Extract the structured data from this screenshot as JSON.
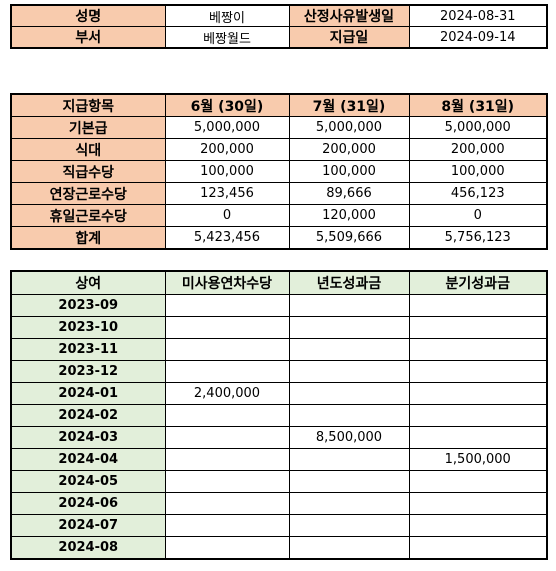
{
  "info": {
    "name_label": "성명",
    "name_value": "베짱이",
    "cause_date_label": "산정사유발생일",
    "cause_date_value": "2024-08-31",
    "dept_label": "부서",
    "dept_value": "베짱월드",
    "pay_date_label": "지급일",
    "pay_date_value": "2024-09-14"
  },
  "pay": {
    "headers": [
      "지급항목",
      "6월 (30일)",
      "7월 (31일)",
      "8월 (31일)"
    ],
    "rows": [
      {
        "label": "기본급",
        "values": [
          "5,000,000",
          "5,000,000",
          "5,000,000"
        ]
      },
      {
        "label": "식대",
        "values": [
          "200,000",
          "200,000",
          "200,000"
        ]
      },
      {
        "label": "직급수당",
        "values": [
          "100,000",
          "100,000",
          "100,000"
        ]
      },
      {
        "label": "연장근로수당",
        "values": [
          "123,456",
          "89,666",
          "456,123"
        ]
      },
      {
        "label": "휴일근로수당",
        "values": [
          "0",
          "120,000",
          "0"
        ]
      },
      {
        "label": "합계",
        "values": [
          "5,423,456",
          "5,509,666",
          "5,756,123"
        ]
      }
    ]
  },
  "bonus": {
    "headers": [
      "상여",
      "미사용연차수당",
      "년도성과금",
      "분기성과금"
    ],
    "rows": [
      {
        "label": "2023-09",
        "values": [
          "",
          "",
          ""
        ]
      },
      {
        "label": "2023-10",
        "values": [
          "",
          "",
          ""
        ]
      },
      {
        "label": "2023-11",
        "values": [
          "",
          "",
          ""
        ]
      },
      {
        "label": "2023-12",
        "values": [
          "",
          "",
          ""
        ]
      },
      {
        "label": "2024-01",
        "values": [
          "2,400,000",
          "",
          ""
        ]
      },
      {
        "label": "2024-02",
        "values": [
          "",
          "",
          ""
        ]
      },
      {
        "label": "2024-03",
        "values": [
          "",
          "8,500,000",
          ""
        ]
      },
      {
        "label": "2024-04",
        "values": [
          "",
          "",
          "1,500,000"
        ]
      },
      {
        "label": "2024-05",
        "values": [
          "",
          "",
          ""
        ]
      },
      {
        "label": "2024-06",
        "values": [
          "",
          "",
          ""
        ]
      },
      {
        "label": "2024-07",
        "values": [
          "",
          "",
          ""
        ]
      },
      {
        "label": "2024-08",
        "values": [
          "",
          "",
          ""
        ]
      }
    ]
  }
}
